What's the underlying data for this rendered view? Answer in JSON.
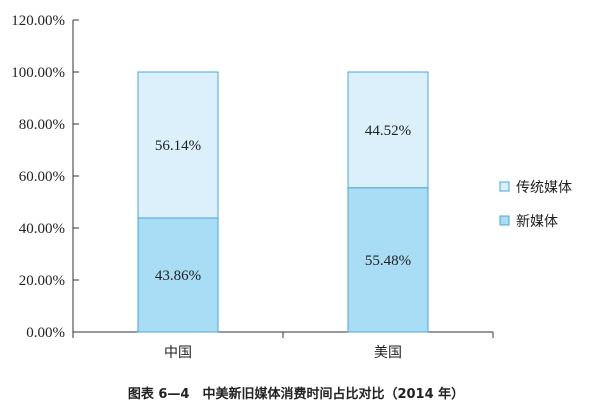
{
  "colors": {
    "new_media": "#a9dcf5",
    "traditional_media": "#dcf0fb",
    "bar_stroke": "#4da6d6",
    "axis": "#333333"
  },
  "chart_data": {
    "type": "bar",
    "stacked": true,
    "categories": [
      "中国",
      "美国"
    ],
    "series": [
      {
        "name": "新媒体",
        "values": [
          43.86,
          55.48
        ],
        "labels": [
          "43.86%",
          "55.48%"
        ],
        "color": "#a9dcf5"
      },
      {
        "name": "传统媒体",
        "values": [
          56.14,
          44.52
        ],
        "labels": [
          "56.14%",
          "44.52%"
        ],
        "color": "#dcf0fb"
      }
    ],
    "ylim": [
      0,
      120
    ],
    "yticks": [
      "0.00%",
      "20.00%",
      "40.00%",
      "60.00%",
      "80.00%",
      "100.00%",
      "120.00%"
    ],
    "legend": {
      "position": "right",
      "entries": [
        "传统媒体",
        "新媒体"
      ]
    },
    "caption": "图表 6—4　中美新旧媒体消费时间占比对比（2014 年）",
    "grid": false
  }
}
